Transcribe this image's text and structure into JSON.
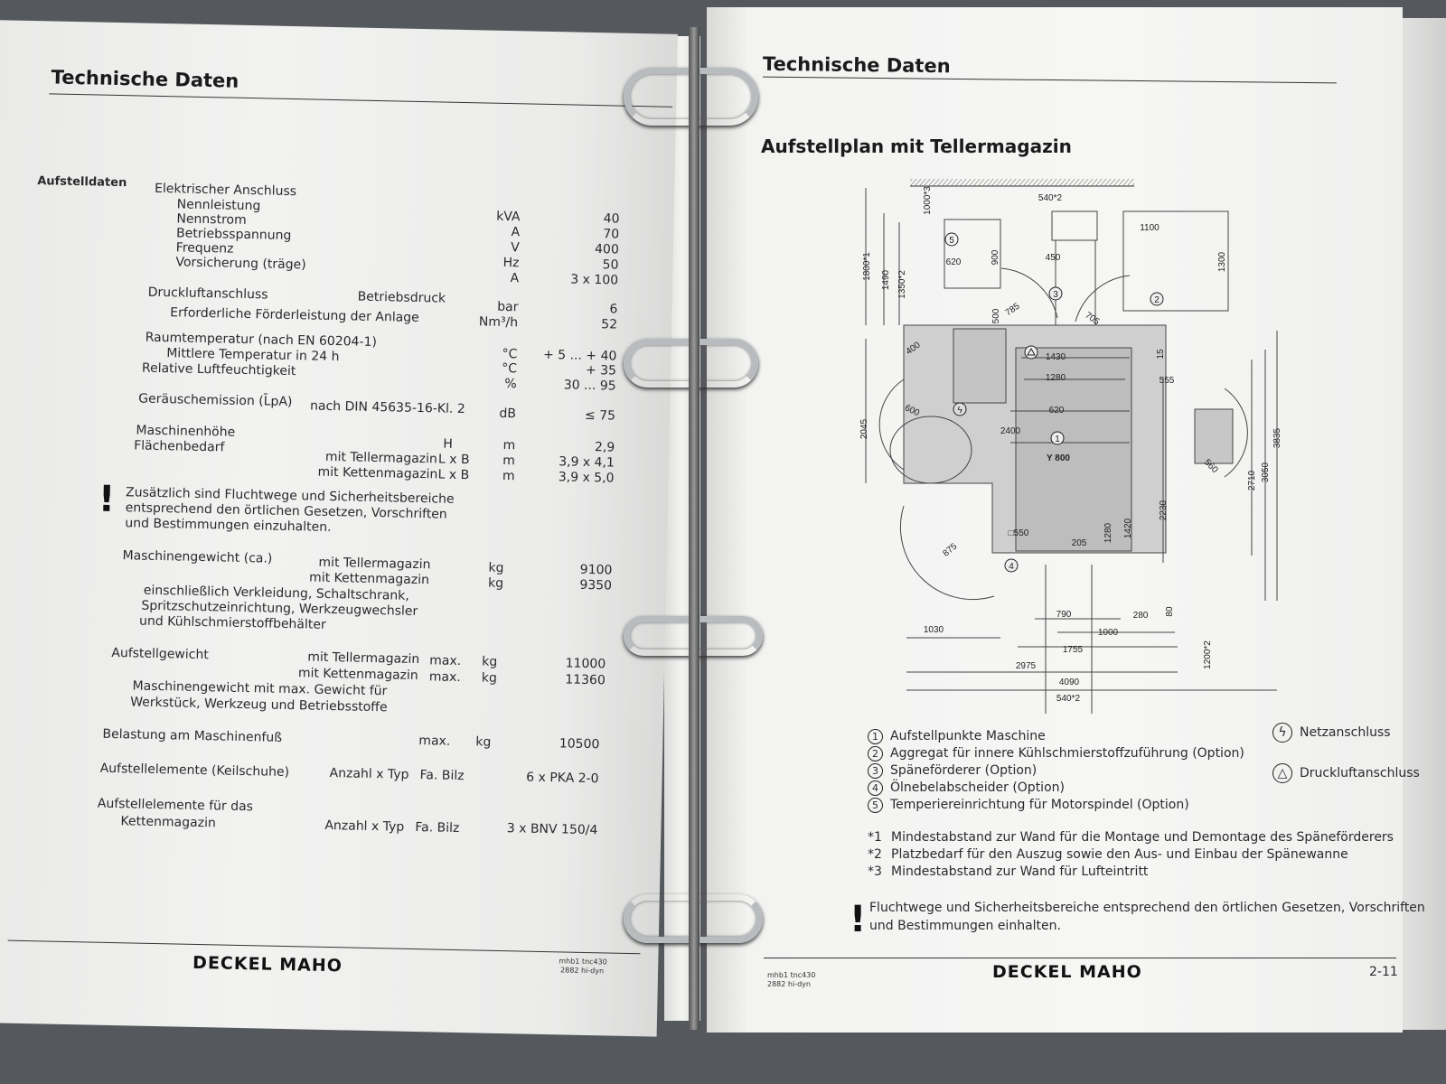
{
  "left_page": {
    "header": "Technische Daten",
    "section": "Aufstelldaten",
    "electrical": {
      "title": "Elektrischer Anschluss",
      "rows": [
        {
          "label": "Nennleistung",
          "unit": "kVA",
          "value": "40"
        },
        {
          "label": "Nennstrom",
          "unit": "A",
          "value": "70"
        },
        {
          "label": "Betriebsspannung",
          "unit": "V",
          "value": "400"
        },
        {
          "label": "Frequenz",
          "unit": "Hz",
          "value": "50"
        },
        {
          "label": "Vorsicherung (träge)",
          "unit": "A",
          "value": "3 x 100"
        }
      ]
    },
    "air": {
      "title": "Druckluftanschluss",
      "sub": "Betriebsdruck",
      "label2": "Erforderliche Förderleistung der Anlage",
      "unit1": "bar",
      "value1": "6",
      "unit2": "Nm³/h",
      "value2": "52"
    },
    "temp": {
      "label1": "Raumtemperatur (nach EN 60204-1)",
      "unit1": "°C",
      "value1": "+ 5 ... + 40",
      "label2": "Mittlere Temperatur in 24 h",
      "unit2": "°C",
      "value2": "+ 35",
      "label3": "Relative Luftfeuchtigkeit",
      "unit3": "%",
      "value3": "30 ... 95"
    },
    "noise": {
      "label": "Geräuschemission (L̄pA)",
      "norm": "nach DIN 45635-16-Kl. 2",
      "unit": "dB",
      "value": "≤ 75"
    },
    "height": {
      "label": "Maschinenhöhe",
      "sym": "H",
      "unit": "m",
      "value": "2,9"
    },
    "area": {
      "label": "Flächenbedarf",
      "rows": [
        {
          "variant": "mit Tellermagazin",
          "sym": "L x B",
          "unit": "m",
          "value": "3,9 x 4,1"
        },
        {
          "variant": "mit Kettenmagazin",
          "sym": "L x B",
          "unit": "m",
          "value": "3,9 x 5,0"
        }
      ]
    },
    "note": [
      "Zusätzlich sind Fluchtwege und Sicherheitsbereiche",
      "entsprechend den örtlichen Gesetzen, Vorschriften",
      "und Bestimmungen einzuhalten."
    ],
    "weight": {
      "label": "Maschinengewicht (ca.)",
      "rows": [
        {
          "variant": "mit Tellermagazin",
          "unit": "kg",
          "value": "9100"
        },
        {
          "variant": "mit Kettenmagazin",
          "unit": "kg",
          "value": "9350"
        }
      ],
      "note": [
        "einschließlich Verkleidung, Schaltschrank,",
        "Spritzschutzeinrichtung, Werkzeugwechsler",
        "und Kühlschmierstoffbehälter"
      ]
    },
    "setup_weight": {
      "label": "Aufstellgewicht",
      "rows": [
        {
          "variant": "mit Tellermagazin",
          "max": "max.",
          "unit": "kg",
          "value": "11000"
        },
        {
          "variant": "mit Kettenmagazin",
          "max": "max.",
          "unit": "kg",
          "value": "11360"
        }
      ],
      "note": [
        "Maschinengewicht mit max. Gewicht für",
        "Werkstück, Werkzeug und Betriebsstoffe"
      ]
    },
    "foot_load": {
      "label": "Belastung am Maschinenfuß",
      "max": "max.",
      "unit": "kg",
      "value": "10500"
    },
    "elements": {
      "label": "Aufstellelemente (Keilschuhe)",
      "type": "Anzahl x Typ",
      "maker": "Fa. Bilz",
      "value": "6 x PKA 2-0"
    },
    "chain_elements": {
      "label1": "Aufstellelemente für das",
      "label2": "Kettenmagazin",
      "type": "Anzahl x Typ",
      "maker": "Fa. Bilz",
      "value": "3 x BNV 150/4"
    },
    "footer": {
      "logo": "DECKEL MAHO",
      "code1": "mhb1 tnc430",
      "code2": "2882 hi-dyn"
    }
  },
  "right_page": {
    "header": "Technische Daten",
    "title": "Aufstellplan mit Tellermagazin",
    "diagram": {
      "markers": [
        "5",
        "3",
        "2",
        "1",
        "4"
      ],
      "dims": [
        "540*2",
        "1000*3",
        "1800*1",
        "1490",
        "1350*2",
        "900",
        "620",
        "450",
        "1100",
        "1300",
        "500",
        "785",
        "705",
        "400",
        "15",
        "1430",
        "1280",
        "555",
        "620",
        "600",
        "2045",
        "2400",
        "Y 800",
        "560",
        "3835",
        "2710",
        "3050",
        "2230",
        "1280",
        "1420",
        "□550",
        "205",
        "875",
        "790",
        "280",
        "80",
        "1000",
        "1030",
        "1755",
        "2975",
        "1200*2",
        "4090",
        "540*2"
      ]
    },
    "legend": [
      {
        "num": "1",
        "text": "Aufstellpunkte Maschine"
      },
      {
        "num": "2",
        "text": "Aggregat für innere Kühlschmierstoffzuführung (Option)"
      },
      {
        "num": "3",
        "text": "Späneförderer (Option)"
      },
      {
        "num": "4",
        "text": "Ölnebelabscheider (Option)"
      },
      {
        "num": "5",
        "text": "Temperiereinrichtung für Motorspindel (Option)"
      }
    ],
    "symbols": [
      {
        "icon": "lightning-icon",
        "glyph": "ϟ",
        "text": "Netzanschluss"
      },
      {
        "icon": "triangle-icon",
        "glyph": "△",
        "text": "Druckluftanschluss"
      }
    ],
    "footnotes": [
      {
        "mark": "*1",
        "text": "Mindestabstand zur Wand für die Montage und Demontage des Späneförderers"
      },
      {
        "mark": "*2",
        "text": "Platzbedarf für den Auszug sowie den Aus- und Einbau der Spänewanne"
      },
      {
        "mark": "*3",
        "text": "Mindestabstand zur Wand für Lufteintritt"
      }
    ],
    "note": [
      "Fluchtwege und Sicherheitsbereiche entsprechend den örtlichen Gesetzen, Vorschriften",
      "und Bestimmungen einhalten."
    ],
    "footer": {
      "code1": "mhb1 tnc430",
      "code2": "2882 hi-dyn",
      "logo": "DECKEL MAHO",
      "page": "2-11"
    }
  }
}
